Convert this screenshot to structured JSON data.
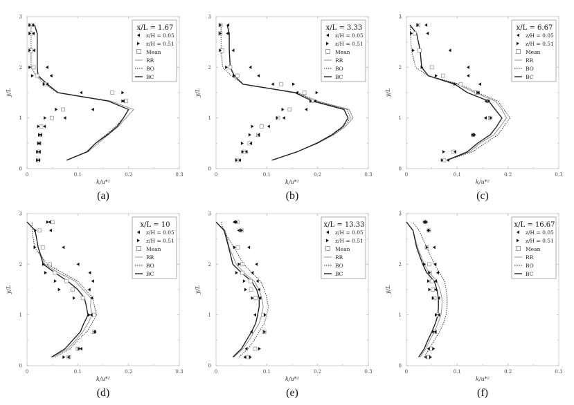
{
  "chart_data": {
    "common": {
      "type": "line+scatter",
      "y_levels": [
        0.167,
        0.333,
        0.5,
        0.667,
        0.833,
        1,
        1.167,
        1.333,
        1.5,
        1.667,
        1.833,
        2,
        2.333,
        2.667,
        2.833
      ],
      "xlim": [
        0,
        0.3
      ],
      "ylim": [
        0,
        3
      ],
      "xticks": [
        "0",
        "0.1",
        "0.2",
        "0.3"
      ],
      "xtick_values": [
        0,
        0.1,
        0.2,
        0.3
      ],
      "yticks": [
        "0",
        "1",
        "2",
        "3"
      ],
      "ytick_values": [
        0,
        1,
        2,
        3
      ],
      "xlabel": "k/u*²",
      "ylabel": "y/L",
      "legend_entries": [
        "z/H = 0.05",
        "z/H = 0.51",
        "Mean",
        "RR",
        "BO",
        "BC"
      ],
      "legend_position": "top-right",
      "colors": {
        "markers": "#111111",
        "mean": "#999999",
        "RR": "#888888",
        "BO": "#222222",
        "BC": "#222222"
      }
    },
    "panels": [
      {
        "label": "(a)",
        "title": "x/L = 1.67",
        "z005": [
          0.024,
          0.025,
          0.025,
          0.028,
          0.035,
          0.075,
          0.13,
          0.19,
          0.107,
          0.04,
          0.048,
          0.04,
          0.014,
          0.013,
          0.012
        ],
        "z051": [
          0.02,
          0.02,
          0.022,
          0.024,
          0.022,
          0.035,
          0.057,
          0.188,
          0.188,
          0.033,
          0.01,
          0.005,
          0.005,
          0.005,
          0.005
        ],
        "mean": [
          0.022,
          0.023,
          0.024,
          0.026,
          0.028,
          0.049,
          0.071,
          0.195,
          0.168,
          0.036,
          0.02,
          0.013,
          0.008,
          0.008,
          0.008
        ],
        "RR": [
          0.078,
          0.12,
          0.14,
          0.16,
          0.18,
          0.195,
          0.21,
          0.165,
          0.062,
          0.04,
          0.022,
          0.02,
          0.02,
          0.02,
          0.015
        ],
        "BO": [
          0.078,
          0.12,
          0.135,
          0.155,
          0.175,
          0.19,
          0.2,
          0.16,
          0.06,
          0.035,
          0.018,
          0.008,
          0.008,
          0.008,
          0.008
        ],
        "BC": [
          0.078,
          0.118,
          0.135,
          0.158,
          0.178,
          0.19,
          0.2,
          0.16,
          0.06,
          0.04,
          0.022,
          0.02,
          0.02,
          0.02,
          0.015
        ]
      },
      {
        "label": "(b)",
        "title": "x/L = 3.33",
        "z005": [
          0.047,
          0.06,
          0.069,
          0.084,
          0.104,
          0.134,
          0.178,
          0.195,
          0.16,
          0.112,
          0.084,
          0.068,
          0.034,
          0.023,
          0.024
        ],
        "z051": [
          0.04,
          0.052,
          0.051,
          0.066,
          0.071,
          0.12,
          0.131,
          0.186,
          0.198,
          0.152,
          0.035,
          0.02,
          0.008,
          0.008,
          0.008
        ],
        "mean": [
          0.042,
          0.056,
          0.066,
          0.083,
          0.09,
          0.122,
          0.145,
          0.19,
          0.174,
          0.128,
          0.042,
          0.028,
          0.012,
          0.008,
          0.009
        ],
        "RR": [
          0.11,
          0.16,
          0.2,
          0.232,
          0.255,
          0.27,
          0.262,
          0.2,
          0.16,
          0.053,
          0.036,
          0.028,
          0.026,
          0.026,
          0.022
        ],
        "BO": [
          0.11,
          0.16,
          0.2,
          0.23,
          0.252,
          0.265,
          0.258,
          0.195,
          0.158,
          0.053,
          0.03,
          0.013,
          0.01,
          0.01,
          0.01
        ],
        "BC": [
          0.11,
          0.16,
          0.198,
          0.228,
          0.25,
          0.26,
          0.252,
          0.19,
          0.155,
          0.053,
          0.036,
          0.028,
          0.026,
          0.026,
          0.022
        ]
      },
      {
        "label": "(c)",
        "title": "x/L = 6.67",
        "z005": [
          0.082,
          0.096,
          null,
          0.13,
          null,
          0.156,
          null,
          0.157,
          0.142,
          0.145,
          0.122,
          0.122,
          0.086,
          0.042,
          0.039
        ],
        "z051": [
          0.07,
          0.073,
          null,
          0.134,
          null,
          0.166,
          null,
          0.162,
          0.14,
          0.095,
          0.058,
          0.03,
          0.013,
          0.009,
          0.022
        ],
        "mean": [
          0.074,
          0.093,
          null,
          0.131,
          null,
          0.165,
          null,
          0.16,
          0.138,
          0.107,
          0.072,
          0.05,
          0.026,
          0.016,
          0.023
        ],
        "RR": [
          0.08,
          0.125,
          0.145,
          0.172,
          0.185,
          0.197,
          0.188,
          0.175,
          0.135,
          0.1,
          0.043,
          0.03,
          0.027,
          0.02,
          0.007
        ],
        "BO": [
          0.08,
          0.13,
          0.155,
          0.18,
          0.192,
          0.204,
          0.192,
          0.18,
          0.14,
          0.105,
          0.043,
          0.018,
          0.01,
          0.008,
          0.007
        ],
        "BC": [
          0.08,
          0.12,
          0.14,
          0.165,
          0.178,
          0.188,
          0.175,
          0.162,
          0.12,
          0.095,
          0.043,
          0.03,
          0.027,
          0.02,
          0.007
        ]
      },
      {
        "label": "(d)",
        "title": "x/L = 10",
        "z005": [
          0.082,
          0.107,
          null,
          0.133,
          null,
          0.127,
          null,
          0.128,
          0.123,
          0.13,
          0.124,
          0.101,
          0.072,
          0.047,
          0.045
        ],
        "z051": [
          0.072,
          0.102,
          null,
          0.134,
          null,
          0.122,
          null,
          0.092,
          0.063,
          0.055,
          0.036,
          0.032,
          0.015,
          0.016,
          0.04
        ],
        "mean": [
          0.082,
          0.1,
          null,
          0.132,
          null,
          0.132,
          null,
          0.11,
          0.09,
          0.078,
          0.055,
          0.045,
          0.031,
          0.025,
          0.05
        ],
        "RR": [
          0.05,
          0.08,
          0.096,
          0.11,
          0.12,
          0.128,
          0.125,
          0.126,
          0.11,
          0.095,
          0.062,
          0.035,
          0.022,
          0.016,
          0
        ],
        "BO": [
          0.055,
          0.085,
          0.1,
          0.118,
          0.128,
          0.137,
          0.133,
          0.13,
          0.115,
          0.1,
          0.07,
          0.04,
          0.015,
          0.01,
          0.01
        ],
        "BC": [
          0.048,
          0.075,
          0.09,
          0.105,
          0.112,
          0.12,
          0.117,
          0.113,
          0.1,
          0.08,
          0.055,
          0.032,
          0.022,
          0.016,
          0
        ]
      },
      {
        "label": "(e)",
        "title": "x/L = 13.33",
        "z005": [
          0.057,
          0.06,
          null,
          0.07,
          null,
          0.077,
          null,
          0.087,
          0.085,
          0.082,
          0.072,
          0.08,
          0.065,
          0.045,
          0.036
        ],
        "z051": [
          0.067,
          0.085,
          null,
          0.095,
          null,
          0.096,
          null,
          0.071,
          0.058,
          0.055,
          0.04,
          0.045,
          0.036,
          0.05,
          0.04
        ],
        "mean": [
          0.064,
          0.077,
          null,
          0.095,
          null,
          0.093,
          null,
          0.078,
          0.069,
          0.068,
          0.052,
          0.052,
          0.043,
          0.05,
          0.042
        ],
        "RR": [
          0.035,
          0.053,
          0.065,
          0.075,
          0.085,
          0.09,
          0.093,
          0.09,
          0.085,
          0.075,
          0.055,
          0.04,
          0.026,
          0.018,
          0
        ],
        "BO": [
          0.045,
          0.063,
          0.075,
          0.085,
          0.095,
          0.1,
          0.103,
          0.1,
          0.095,
          0.088,
          0.07,
          0.055,
          0.035,
          0.015,
          0.01
        ],
        "BC": [
          0.033,
          0.05,
          0.06,
          0.07,
          0.078,
          0.082,
          0.085,
          0.085,
          0.08,
          0.07,
          0.05,
          0.033,
          0.025,
          0.016,
          0
        ]
      },
      {
        "label": "(f)",
        "title": "x/L = 16.67",
        "z005": [
          0.038,
          0.044,
          null,
          0.057,
          null,
          0.064,
          null,
          0.064,
          0.058,
          0.058,
          0.062,
          0.057,
          0.055,
          0.043,
          0.035
        ],
        "z051": [
          0.047,
          0.053,
          null,
          0.053,
          null,
          0.058,
          null,
          0.052,
          0.045,
          0.043,
          0.045,
          0.035,
          0.04,
          0.044,
          0.039
        ],
        "mean": [
          0.043,
          0.048,
          null,
          0.056,
          null,
          0.062,
          null,
          0.055,
          0.052,
          0.05,
          0.046,
          0.045,
          0.04,
          0.044,
          0.037
        ],
        "RR": [
          0.027,
          0.038,
          0.046,
          0.055,
          0.062,
          0.068,
          0.07,
          0.07,
          0.066,
          0.06,
          0.045,
          0.035,
          0.022,
          0.013,
          0
        ],
        "BO": [
          0.035,
          0.045,
          0.055,
          0.065,
          0.073,
          0.078,
          0.08,
          0.08,
          0.078,
          0.075,
          0.065,
          0.055,
          0.04,
          0.025,
          0.012
        ],
        "BC": [
          0.024,
          0.035,
          0.042,
          0.05,
          0.057,
          0.062,
          0.063,
          0.063,
          0.06,
          0.055,
          0.04,
          0.032,
          0.02,
          0.013,
          0
        ]
      }
    ]
  }
}
